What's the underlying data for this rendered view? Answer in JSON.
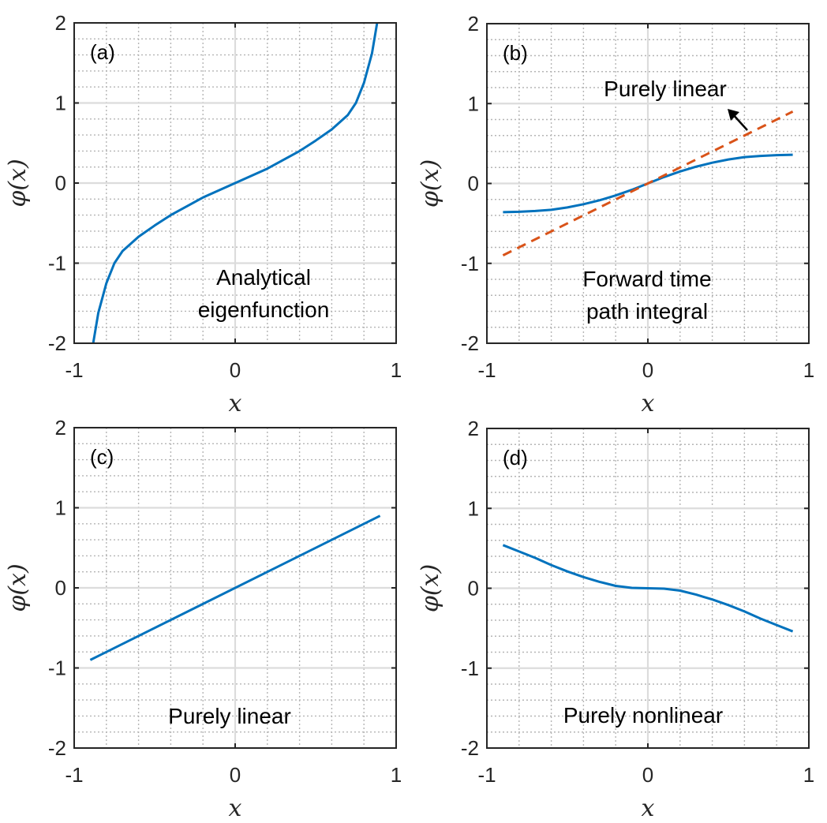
{
  "colors": {
    "series_blue": "#0072BD",
    "series_orange": "#D95319",
    "axis": "#262626"
  },
  "chart_data": [
    {
      "type": "line",
      "panel_label": "(a)",
      "xlabel": "x",
      "ylabel": "φ(x)",
      "xlim": [
        -1,
        1
      ],
      "ylim": [
        -2,
        2
      ],
      "xticks": [
        "-1",
        "0",
        "1"
      ],
      "yticks": [
        "-2",
        "-1",
        "0",
        "1",
        "2"
      ],
      "grid": true,
      "minor_grid": true,
      "annotation": [
        "Analytical",
        "eigenfunction"
      ],
      "series": [
        {
          "color": "#0072BD",
          "style": "solid",
          "x": [
            -0.882,
            -0.85,
            -0.8,
            -0.75,
            -0.7,
            -0.6,
            -0.5,
            -0.4,
            -0.3,
            -0.2,
            -0.1,
            0,
            0.1,
            0.2,
            0.3,
            0.4,
            0.5,
            0.6,
            0.7,
            0.75,
            0.8,
            0.85,
            0.882
          ],
          "y": [
            -2.0,
            -1.62,
            -1.25,
            -1.0,
            -0.85,
            -0.67,
            -0.53,
            -0.4,
            -0.29,
            -0.18,
            -0.09,
            0,
            0.09,
            0.18,
            0.29,
            0.4,
            0.53,
            0.67,
            0.85,
            1.0,
            1.25,
            1.62,
            2.0
          ]
        }
      ]
    },
    {
      "type": "line",
      "panel_label": "(b)",
      "xlabel": "x",
      "ylabel": "φ(x)",
      "xlim": [
        -1,
        1
      ],
      "ylim": [
        -2,
        2
      ],
      "xticks": [
        "-1",
        "0",
        "1"
      ],
      "yticks": [
        "-2",
        "-1",
        "0",
        "1",
        "2"
      ],
      "grid": true,
      "minor_grid": true,
      "annotation": [
        "Forward time",
        "path integral"
      ],
      "arrow_label": "Purely linear",
      "arrow": {
        "from": [
          0.98,
          0.95
        ],
        "to": [
          0.93,
          0.96
        ]
      },
      "series": [
        {
          "color": "#0072BD",
          "style": "solid",
          "x": [
            -0.9,
            -0.8,
            -0.7,
            -0.6,
            -0.5,
            -0.4,
            -0.3,
            -0.2,
            -0.1,
            0,
            0.1,
            0.2,
            0.3,
            0.4,
            0.5,
            0.6,
            0.7,
            0.8,
            0.9
          ],
          "y": [
            -0.36,
            -0.355,
            -0.345,
            -0.33,
            -0.3,
            -0.26,
            -0.21,
            -0.15,
            -0.08,
            0,
            0.08,
            0.15,
            0.21,
            0.26,
            0.3,
            0.33,
            0.345,
            0.355,
            0.36
          ]
        },
        {
          "color": "#D95319",
          "style": "dashed",
          "x": [
            -0.9,
            0.9
          ],
          "y": [
            -0.9,
            0.9
          ]
        }
      ]
    },
    {
      "type": "line",
      "panel_label": "(c)",
      "xlabel": "x",
      "ylabel": "φ(x)",
      "xlim": [
        -1,
        1
      ],
      "ylim": [
        -2,
        2
      ],
      "xticks": [
        "-1",
        "0",
        "1"
      ],
      "yticks": [
        "-2",
        "-1",
        "0",
        "1",
        "2"
      ],
      "grid": true,
      "minor_grid": true,
      "annotation": [
        "Purely linear"
      ],
      "series": [
        {
          "color": "#0072BD",
          "style": "solid",
          "x": [
            -0.9,
            0.9
          ],
          "y": [
            -0.9,
            0.9
          ]
        }
      ]
    },
    {
      "type": "line",
      "panel_label": "(d)",
      "xlabel": "x",
      "ylabel": "φ(x)",
      "xlim": [
        -1,
        1
      ],
      "ylim": [
        -2,
        2
      ],
      "xticks": [
        "-1",
        "0",
        "1"
      ],
      "yticks": [
        "-2",
        "-1",
        "0",
        "1",
        "2"
      ],
      "grid": true,
      "minor_grid": true,
      "annotation": [
        "Purely nonlinear"
      ],
      "series": [
        {
          "color": "#0072BD",
          "style": "solid",
          "x": [
            -0.9,
            -0.8,
            -0.7,
            -0.6,
            -0.5,
            -0.4,
            -0.3,
            -0.2,
            -0.1,
            0,
            0.1,
            0.2,
            0.3,
            0.4,
            0.5,
            0.6,
            0.7,
            0.8,
            0.9
          ],
          "y": [
            0.54,
            0.46,
            0.38,
            0.29,
            0.21,
            0.14,
            0.08,
            0.03,
            0.005,
            0,
            -0.005,
            -0.03,
            -0.08,
            -0.14,
            -0.21,
            -0.29,
            -0.38,
            -0.46,
            -0.54
          ]
        }
      ]
    }
  ]
}
